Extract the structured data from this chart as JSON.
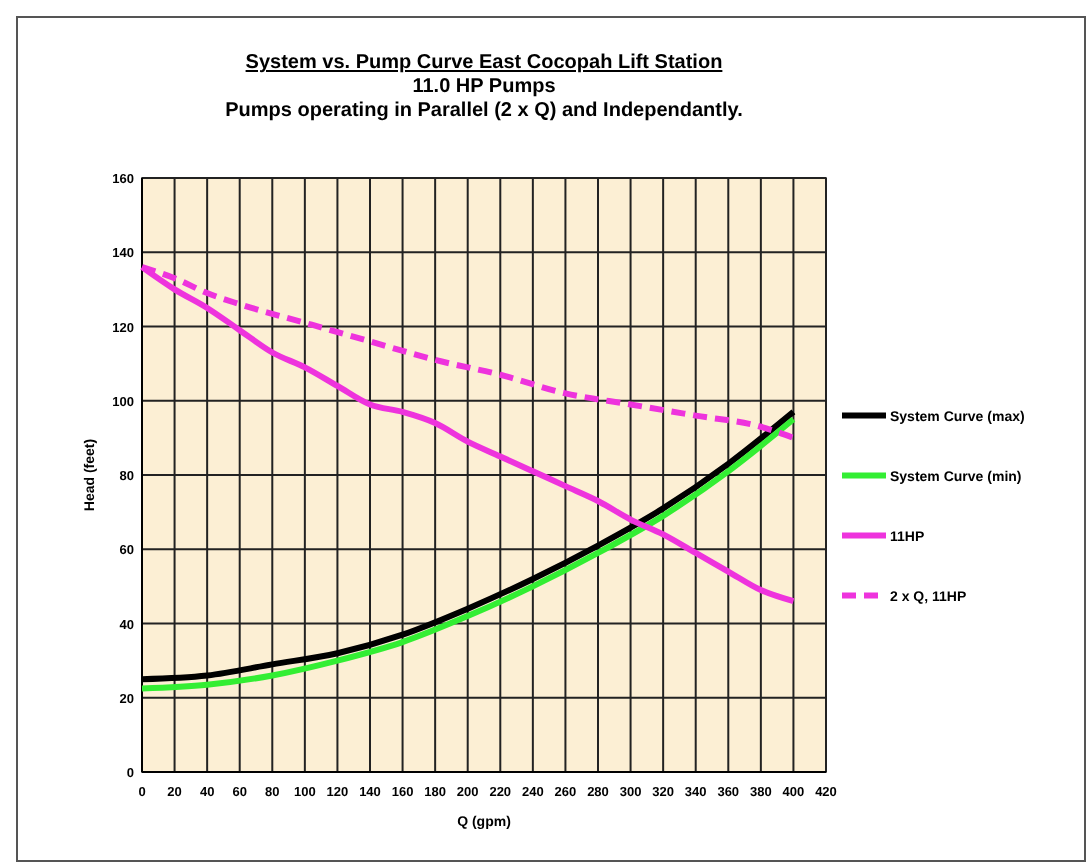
{
  "chart_data": {
    "type": "line",
    "title": "System vs. Pump Curve East Cocopah Lift Station",
    "subtitle": "11.0 HP Pumps\nPumps operating in Parallel (2 x Q) and Independantly.",
    "xlabel": "Q (gpm)",
    "ylabel": "Head (feet)",
    "xlim": [
      0,
      420
    ],
    "xticks": [
      0,
      20,
      40,
      60,
      80,
      100,
      120,
      140,
      160,
      180,
      200,
      220,
      240,
      260,
      280,
      300,
      320,
      340,
      360,
      380,
      400,
      420
    ],
    "ylim": [
      0,
      160
    ],
    "yticks": [
      0,
      20,
      40,
      60,
      80,
      100,
      120,
      140,
      160
    ],
    "grid": true,
    "legend": "right",
    "series": [
      {
        "name": "System Curve (max)",
        "color": "#000000",
        "line_style": "solid",
        "x": [
          0,
          40,
          80,
          120,
          160,
          200,
          240,
          280,
          320,
          360,
          400
        ],
        "values": [
          25,
          26,
          29,
          32,
          37,
          44,
          52,
          61,
          71,
          83,
          97
        ]
      },
      {
        "name": "System Curve (min)",
        "color": "#33ee33",
        "line_style": "solid",
        "x": [
          0,
          40,
          80,
          120,
          160,
          200,
          240,
          280,
          320,
          360,
          400
        ],
        "values": [
          22.5,
          23.5,
          26,
          30,
          35,
          42,
          50,
          59,
          69,
          81,
          95
        ]
      },
      {
        "name": "11HP",
        "color": "#ee33dd",
        "line_style": "solid",
        "x": [
          0,
          20,
          40,
          60,
          80,
          100,
          120,
          140,
          160,
          180,
          200,
          220,
          240,
          260,
          280,
          300,
          320,
          340,
          360,
          380,
          400
        ],
        "values": [
          136,
          130,
          125,
          119,
          113,
          109,
          104,
          99,
          97,
          94,
          89,
          85,
          81,
          77,
          73,
          68,
          64,
          59,
          54,
          49,
          46
        ]
      },
      {
        "name": "2 x Q, 11HP",
        "color": "#ee33dd",
        "line_style": "dashed",
        "x": [
          0,
          20,
          40,
          60,
          100,
          140,
          180,
          220,
          260,
          300,
          340,
          380,
          400
        ],
        "values": [
          136,
          133,
          129,
          126,
          121,
          116,
          111,
          107,
          102,
          99,
          96,
          93,
          90
        ]
      }
    ]
  }
}
